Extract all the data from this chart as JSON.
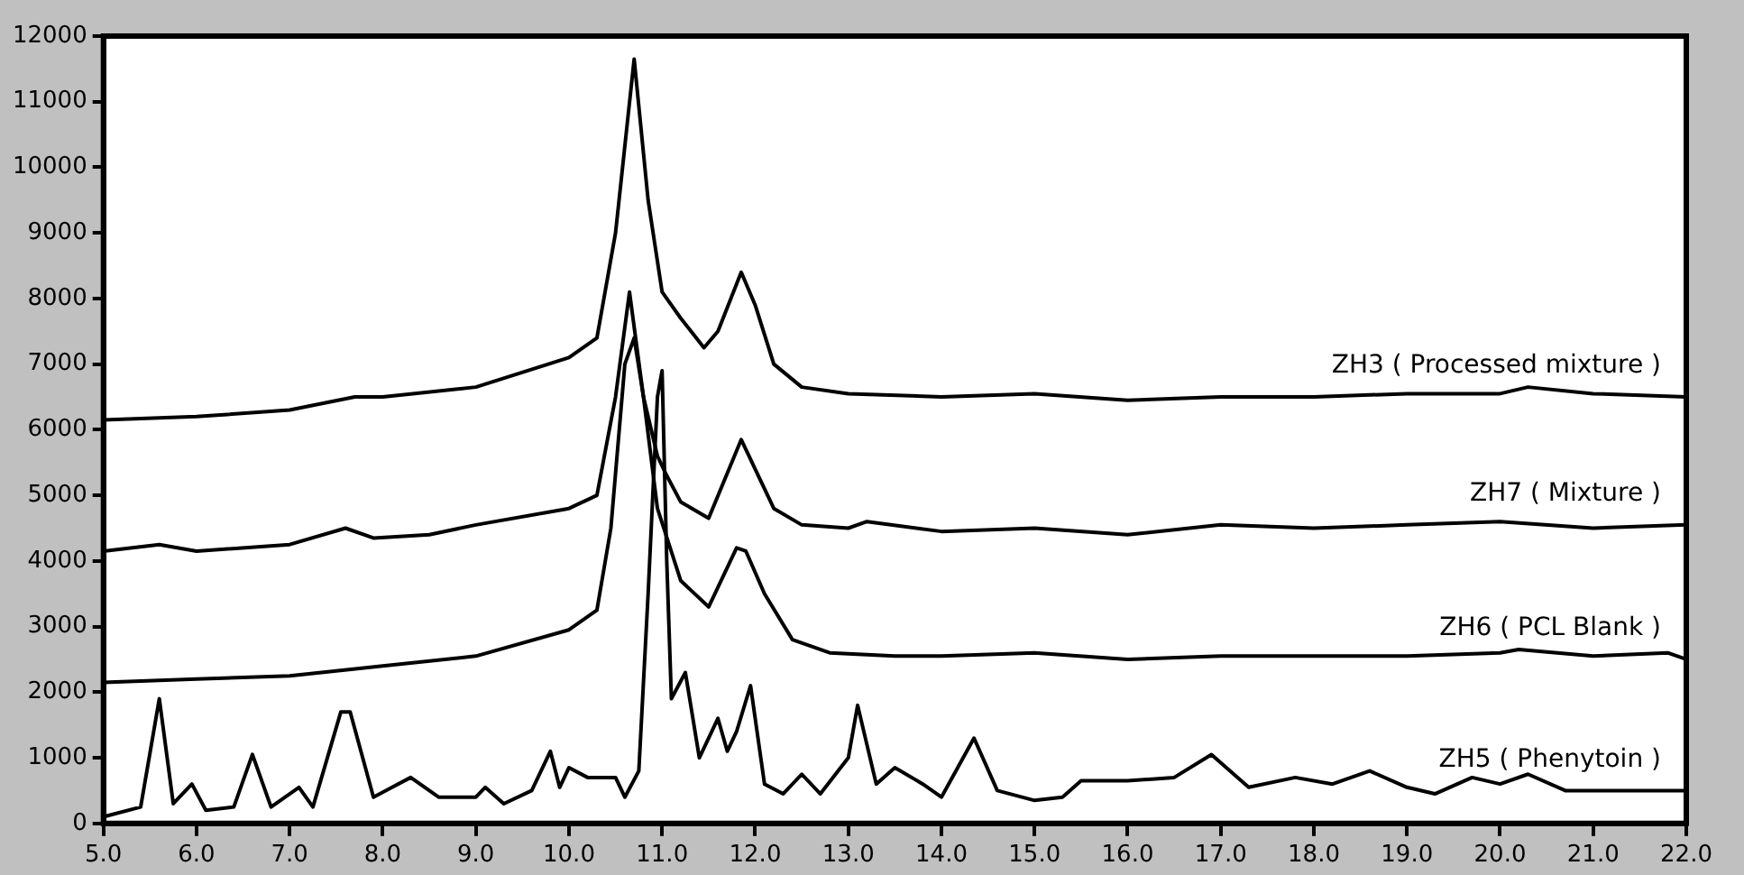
{
  "chart_data": {
    "type": "line",
    "xlim": [
      5,
      22
    ],
    "ylim": [
      0,
      12000
    ],
    "xticks": [
      {
        "value": 5,
        "label": "5.0"
      },
      {
        "value": 6,
        "label": "6.0"
      },
      {
        "value": 7,
        "label": "7.0"
      },
      {
        "value": 8,
        "label": "8.0"
      },
      {
        "value": 9,
        "label": "9.0"
      },
      {
        "value": 10,
        "label": "10.0"
      },
      {
        "value": 11,
        "label": "11.0"
      },
      {
        "value": 12,
        "label": "12.0"
      },
      {
        "value": 13,
        "label": "13.0"
      },
      {
        "value": 14,
        "label": "14.0"
      },
      {
        "value": 15,
        "label": "15.0"
      },
      {
        "value": 16,
        "label": "16.0"
      },
      {
        "value": 17,
        "label": "17.0"
      },
      {
        "value": 18,
        "label": "18.0"
      },
      {
        "value": 19,
        "label": "19.0"
      },
      {
        "value": 20,
        "label": "20.0"
      },
      {
        "value": 21,
        "label": "21.0"
      },
      {
        "value": 22,
        "label": "22.0"
      }
    ],
    "yticks": [
      0,
      1000,
      2000,
      3000,
      4000,
      5000,
      6000,
      7000,
      8000,
      9000,
      10000,
      11000,
      12000
    ],
    "grid": false,
    "legend": false,
    "marker": "none",
    "line_style": "solid",
    "series": [
      {
        "name": "ZH3 ( Processed mixture )",
        "color": "#000000",
        "x": [
          5,
          6,
          7,
          7.7,
          8,
          9,
          10,
          10.3,
          10.5,
          10.7,
          10.85,
          11,
          11.2,
          11.45,
          11.6,
          11.85,
          12,
          12.2,
          12.5,
          13,
          14,
          15,
          16,
          17,
          18,
          19,
          20,
          20.3,
          21,
          22
        ],
        "values": [
          6150,
          6200,
          6300,
          6500,
          6500,
          6650,
          7100,
          7400,
          9000,
          11650,
          9500,
          8100,
          7700,
          7250,
          7500,
          8400,
          7900,
          7000,
          6650,
          6550,
          6500,
          6550,
          6450,
          6500,
          6500,
          6550,
          6550,
          6650,
          6550,
          6500
        ]
      },
      {
        "name": "ZH7 ( Mixture )",
        "color": "#000000",
        "x": [
          5,
          5.6,
          6,
          7,
          7.6,
          7.9,
          8.5,
          9,
          10,
          10.3,
          10.5,
          10.65,
          10.8,
          10.95,
          11.05,
          11.2,
          11.5,
          11.85,
          12,
          12.2,
          12.5,
          13,
          13.2,
          14,
          15,
          16,
          17,
          18,
          19,
          20,
          21,
          22
        ],
        "values": [
          4150,
          4250,
          4150,
          4250,
          4500,
          4350,
          4400,
          4550,
          4800,
          5000,
          6500,
          8100,
          6500,
          5600,
          5300,
          4900,
          4650,
          5850,
          5400,
          4800,
          4550,
          4500,
          4600,
          4450,
          4500,
          4400,
          4550,
          4500,
          4550,
          4600,
          4500,
          4550
        ]
      },
      {
        "name": "ZH6 ( PCL Blank )",
        "color": "#000000",
        "x": [
          5,
          6,
          7,
          8,
          9,
          10,
          10.3,
          10.45,
          10.6,
          10.7,
          10.8,
          10.95,
          11.2,
          11.5,
          11.8,
          11.9,
          12.1,
          12.4,
          12.8,
          13.5,
          14,
          15,
          16,
          17,
          18,
          19,
          20,
          20.2,
          21,
          21.8,
          22
        ],
        "values": [
          2150,
          2200,
          2250,
          2400,
          2550,
          2950,
          3250,
          4500,
          7000,
          7400,
          6500,
          4800,
          3700,
          3300,
          4200,
          4150,
          3500,
          2800,
          2600,
          2550,
          2550,
          2600,
          2500,
          2550,
          2550,
          2550,
          2600,
          2650,
          2550,
          2600,
          2500
        ]
      },
      {
        "name": "ZH5 ( Phenytoin )",
        "color": "#000000",
        "x": [
          5,
          5.4,
          5.6,
          5.75,
          5.95,
          6.1,
          6.4,
          6.6,
          6.8,
          7.1,
          7.25,
          7.55,
          7.65,
          7.9,
          8.1,
          8.3,
          8.6,
          9,
          9.1,
          9.3,
          9.6,
          9.8,
          9.9,
          10,
          10.2,
          10.5,
          10.6,
          10.75,
          10.85,
          10.95,
          11,
          11.05,
          11.1,
          11.25,
          11.4,
          11.6,
          11.7,
          11.8,
          11.95,
          12.1,
          12.3,
          12.5,
          12.7,
          13,
          13.1,
          13.3,
          13.5,
          13.8,
          14,
          14.35,
          14.6,
          15,
          15.3,
          15.5,
          16,
          16.5,
          16.9,
          17.3,
          17.8,
          18.2,
          18.6,
          19,
          19.3,
          19.7,
          20,
          20.3,
          20.7,
          22
        ],
        "values": [
          100,
          250,
          1900,
          300,
          600,
          200,
          250,
          1050,
          250,
          550,
          250,
          1700,
          1700,
          400,
          550,
          700,
          400,
          400,
          550,
          300,
          500,
          1100,
          550,
          850,
          700,
          700,
          400,
          800,
          3500,
          6500,
          6900,
          4000,
          1900,
          2300,
          1000,
          1600,
          1100,
          1400,
          2100,
          600,
          450,
          750,
          450,
          1000,
          1800,
          600,
          850,
          600,
          400,
          1300,
          500,
          350,
          400,
          650,
          650,
          700,
          1050,
          550,
          700,
          600,
          800,
          550,
          450,
          700,
          600,
          750,
          500,
          500
        ]
      }
    ]
  }
}
